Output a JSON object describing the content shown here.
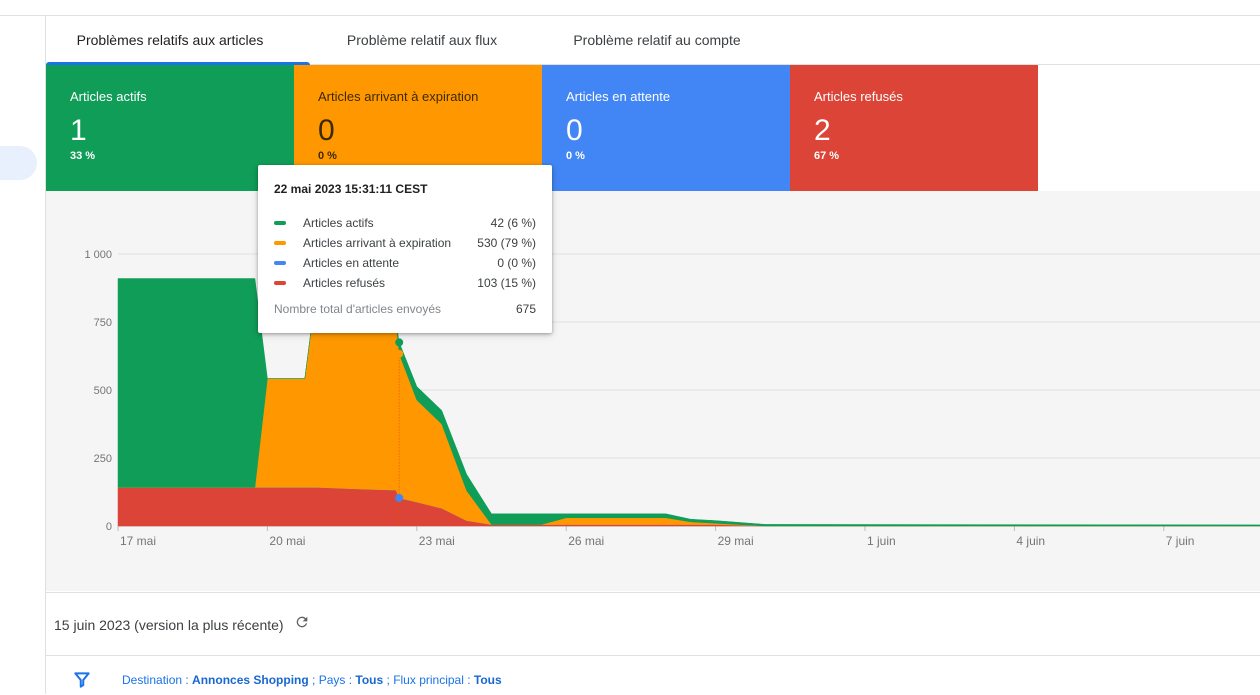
{
  "tabs": [
    {
      "label": "Problèmes relatifs aux articles",
      "active": true
    },
    {
      "label": "Problème relatif aux flux",
      "active": false
    },
    {
      "label": "Problème relatif au compte",
      "active": false
    }
  ],
  "cards": [
    {
      "label": "Articles actifs",
      "value": "1",
      "percent": "33 %",
      "color": "#0f9d58"
    },
    {
      "label": "Articles arrivant à expiration",
      "value": "0",
      "percent": "0 %",
      "color": "#ff9800"
    },
    {
      "label": "Articles en attente",
      "value": "0",
      "percent": "0 %",
      "color": "#4285f4"
    },
    {
      "label": "Articles refusés",
      "value": "2",
      "percent": "67 %",
      "color": "#db4437"
    }
  ],
  "tooltip": {
    "title": "22 mai 2023 15:31:11 CEST",
    "rows": [
      {
        "label": "Articles actifs",
        "value": "42 (6 %)",
        "color": "#0f9d58"
      },
      {
        "label": "Articles arrivant à expiration",
        "value": "530 (79 %)",
        "color": "#ff9800"
      },
      {
        "label": "Articles en attente",
        "value": "0 (0 %)",
        "color": "#4285f4"
      },
      {
        "label": "Articles refusés",
        "value": "103 (15 %)",
        "color": "#db4437"
      }
    ],
    "total_label": "Nombre total d'articles envoyés",
    "total_value": "675"
  },
  "footer": {
    "version": "15 juin 2023 (version la plus récente)"
  },
  "filter": {
    "destination_label": "Destination : ",
    "destination_value": "Annonces Shopping",
    "pays_label": " ; Pays : ",
    "pays_value": "Tous",
    "flux_label": " ; Flux principal : ",
    "flux_value": "Tous"
  },
  "chart_data": {
    "type": "area",
    "stacked": true,
    "x_start": "2023-05-17",
    "x_end": "2023-06-09",
    "x_ticks": [
      "17 mai",
      "20 mai",
      "23 mai",
      "26 mai",
      "29 mai",
      "1 juin",
      "4 juin",
      "7 juin"
    ],
    "ylim": [
      0,
      1000
    ],
    "y_ticks": [
      "0",
      "250",
      "500",
      "750",
      "1 000"
    ],
    "grid": true,
    "series_order": [
      "refused",
      "pending",
      "expiring",
      "active"
    ],
    "points": [
      {
        "x": "2023-05-17T00:00",
        "refused": 142,
        "pending": 0,
        "expiring": 0,
        "active": 768
      },
      {
        "x": "2023-05-19T00:00",
        "refused": 142,
        "pending": 0,
        "expiring": 0,
        "active": 768
      },
      {
        "x": "2023-05-19T18:00",
        "refused": 142,
        "pending": 0,
        "expiring": 0,
        "active": 768
      },
      {
        "x": "2023-05-20T00:00",
        "refused": 142,
        "pending": 0,
        "expiring": 400,
        "active": 0
      },
      {
        "x": "2023-05-20T18:00",
        "refused": 142,
        "pending": 0,
        "expiring": 400,
        "active": 0
      },
      {
        "x": "2023-05-21T00:00",
        "refused": 142,
        "pending": 0,
        "expiring": 750,
        "active": 0
      },
      {
        "x": "2023-05-22T00:00",
        "refused": 135,
        "pending": 0,
        "expiring": 655,
        "active": 0
      },
      {
        "x": "2023-05-22T14:00",
        "refused": 132,
        "pending": 0,
        "expiring": 620,
        "active": 0
      },
      {
        "x": "2023-05-22T15:31",
        "refused": 103,
        "pending": 0,
        "expiring": 530,
        "active": 42
      },
      {
        "x": "2023-05-23T00:00",
        "refused": 88,
        "pending": 0,
        "expiring": 375,
        "active": 50
      },
      {
        "x": "2023-05-23T12:00",
        "refused": 65,
        "pending": 0,
        "expiring": 310,
        "active": 50
      },
      {
        "x": "2023-05-24T00:00",
        "refused": 20,
        "pending": 0,
        "expiring": 110,
        "active": 60
      },
      {
        "x": "2023-05-24T12:00",
        "refused": 5,
        "pending": 0,
        "expiring": 0,
        "active": 40
      },
      {
        "x": "2023-05-25T12:00",
        "refused": 5,
        "pending": 0,
        "expiring": 0,
        "active": 40
      },
      {
        "x": "2023-05-26T00:00",
        "refused": 5,
        "pending": 0,
        "expiring": 25,
        "active": 15
      },
      {
        "x": "2023-05-28T00:00",
        "refused": 5,
        "pending": 0,
        "expiring": 25,
        "active": 15
      },
      {
        "x": "2023-05-28T12:00",
        "refused": 5,
        "pending": 0,
        "expiring": 10,
        "active": 10
      },
      {
        "x": "2023-05-29T00:00",
        "refused": 5,
        "pending": 0,
        "expiring": 5,
        "active": 10
      },
      {
        "x": "2023-05-30T00:00",
        "refused": 0,
        "pending": 0,
        "expiring": 0,
        "active": 6
      },
      {
        "x": "2023-06-09T00:00",
        "refused": 0,
        "pending": 0,
        "expiring": 0,
        "active": 4
      }
    ],
    "colors": {
      "active": "#0f9d58",
      "expiring": "#ff9800",
      "pending": "#4285f4",
      "refused": "#db4437"
    },
    "highlight_x": "2023-05-22T15:31"
  }
}
